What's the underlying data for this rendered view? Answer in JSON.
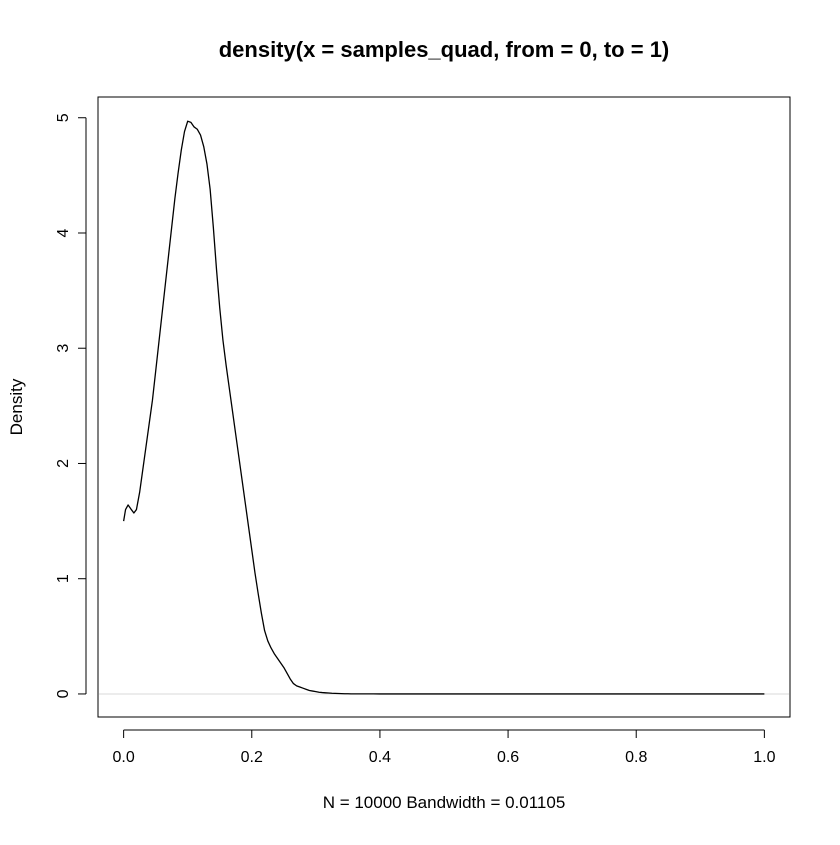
{
  "chart_data": {
    "type": "line",
    "title": "density(x = samples_quad, from = 0, to = 1)",
    "xlabel": "N = 10000   Bandwidth = 0.01105",
    "ylabel": "Density",
    "xlim": [
      -0.04,
      1.04
    ],
    "ylim": [
      -0.2,
      5.18
    ],
    "x_ticks": [
      0,
      0.2,
      0.4,
      0.6,
      0.8,
      1
    ],
    "x_tick_labels": [
      "0.0",
      "0.2",
      "0.4",
      "0.6",
      "0.8",
      "1.0"
    ],
    "y_ticks": [
      0,
      1,
      2,
      3,
      4,
      5
    ],
    "y_tick_labels": [
      "0",
      "1",
      "2",
      "3",
      "4",
      "5"
    ],
    "grid": false,
    "legend": "none",
    "zero_line": true,
    "line_color": "#000000",
    "zero_line_color": "#d9d9d9",
    "series": [
      {
        "x": [
          0.0,
          0.003,
          0.007,
          0.012,
          0.016,
          0.02,
          0.025,
          0.03,
          0.035,
          0.04,
          0.045,
          0.05,
          0.055,
          0.06,
          0.065,
          0.07,
          0.075,
          0.08,
          0.085,
          0.09,
          0.095,
          0.1,
          0.105,
          0.11,
          0.115,
          0.12,
          0.125,
          0.13,
          0.135,
          0.14,
          0.145,
          0.15,
          0.155,
          0.16,
          0.165,
          0.17,
          0.175,
          0.18,
          0.185,
          0.19,
          0.195,
          0.2,
          0.205,
          0.21,
          0.215,
          0.22,
          0.225,
          0.23,
          0.235,
          0.24,
          0.245,
          0.25,
          0.255,
          0.26,
          0.265,
          0.27,
          0.275,
          0.28,
          0.285,
          0.29,
          0.295,
          0.3,
          0.305,
          0.31,
          0.315,
          0.32,
          0.325,
          0.33,
          0.335,
          0.34,
          0.345,
          0.35,
          0.355,
          0.36,
          0.365,
          0.37,
          0.375,
          0.38,
          0.385,
          0.39,
          0.4,
          0.41,
          0.42,
          0.43,
          0.44,
          0.45,
          0.46,
          0.47,
          0.48,
          0.49,
          0.5,
          0.55,
          0.6,
          0.7,
          0.8,
          0.9,
          1.0
        ],
        "y": [
          1.5,
          1.6,
          1.64,
          1.6,
          1.57,
          1.6,
          1.75,
          1.95,
          2.15,
          2.35,
          2.55,
          2.8,
          3.05,
          3.3,
          3.55,
          3.8,
          4.05,
          4.3,
          4.52,
          4.72,
          4.88,
          4.97,
          4.96,
          4.92,
          4.9,
          4.85,
          4.75,
          4.6,
          4.38,
          4.05,
          3.68,
          3.35,
          3.07,
          2.85,
          2.65,
          2.45,
          2.25,
          2.05,
          1.85,
          1.65,
          1.45,
          1.25,
          1.05,
          0.87,
          0.7,
          0.55,
          0.46,
          0.4,
          0.35,
          0.31,
          0.27,
          0.23,
          0.18,
          0.13,
          0.09,
          0.07,
          0.06,
          0.05,
          0.04,
          0.03,
          0.025,
          0.02,
          0.015,
          0.012,
          0.01,
          0.008,
          0.006,
          0.005,
          0.004,
          0.003,
          0.002,
          0.002,
          0.001,
          0.001,
          0.001,
          0.001,
          0.001,
          0.001,
          0.001,
          0.001,
          0.0,
          0.0,
          0.0,
          0.0,
          0.0,
          0.0,
          0.0,
          0.0,
          0.0,
          0.0,
          0.0,
          0.0,
          0.0,
          0.0,
          0.0,
          0.0,
          0.0
        ]
      }
    ]
  }
}
